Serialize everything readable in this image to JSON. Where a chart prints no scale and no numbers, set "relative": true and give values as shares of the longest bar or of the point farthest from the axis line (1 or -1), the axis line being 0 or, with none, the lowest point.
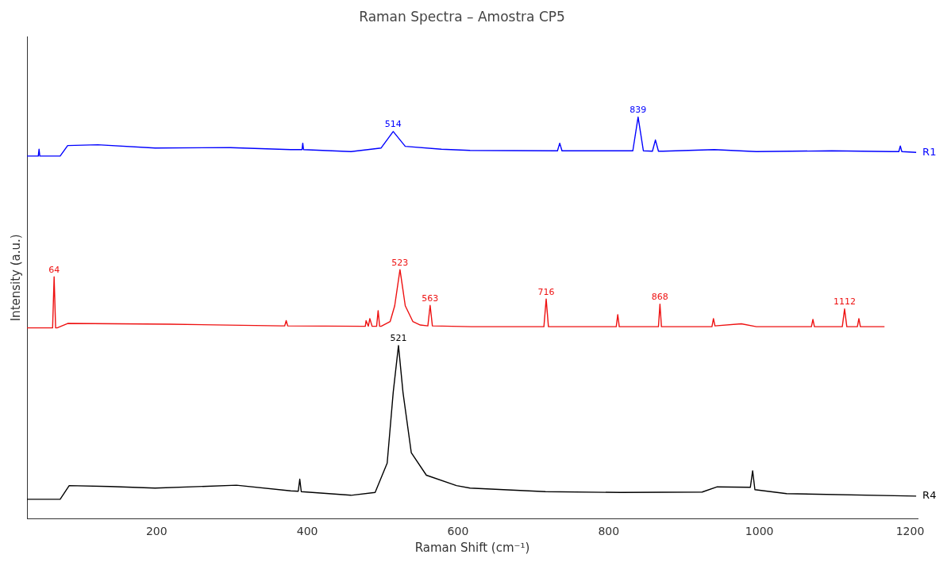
{
  "chart_data": {
    "type": "line",
    "title": "Raman Spectra – Amostra CP5",
    "xlabel": "Raman Shift (cm⁻¹)",
    "ylabel": "Intensity (a.u.)",
    "relative": true,
    "xlim": [
      28,
      1210
    ],
    "xticks": [
      200,
      400,
      600,
      800,
      1000,
      1200
    ],
    "grid": false,
    "legend": false,
    "marker": "none",
    "line_style": "solid",
    "series": [
      {
        "name": "R1",
        "color": "#0000ff",
        "x": [
          28,
          43,
          44,
          45,
          72,
          82,
          122,
          198,
          298,
          378,
          393,
          394,
          395,
          458,
          498,
          514,
          530,
          578,
          616,
          732,
          735,
          738,
          832,
          839,
          846,
          858,
          862,
          866,
          872,
          940,
          996,
          1096,
          1176,
          1185,
          1187,
          1189,
          1208
        ],
        "values": [
          0.903,
          0.903,
          0.92,
          0.903,
          0.903,
          0.929,
          0.931,
          0.923,
          0.924,
          0.919,
          0.919,
          0.935,
          0.919,
          0.914,
          0.923,
          0.964,
          0.927,
          0.92,
          0.917,
          0.916,
          0.935,
          0.916,
          0.916,
          1.0,
          0.916,
          0.915,
          0.943,
          0.915,
          0.915,
          0.919,
          0.914,
          0.916,
          0.914,
          0.914,
          0.928,
          0.914,
          0.912
        ]
      },
      {
        "color": "#ee1111",
        "x": [
          28,
          62,
          64,
          66,
          68,
          82,
          218,
          366,
          370,
          372,
          374,
          474,
          477,
          478,
          481,
          483,
          486,
          488,
          492,
          494,
          496,
          498,
          510,
          516,
          523,
          530,
          540,
          550,
          560,
          563,
          566,
          618,
          714,
          717,
          720,
          810,
          812,
          814,
          866,
          868,
          870,
          937,
          939,
          941,
          976,
          996,
          1069,
          1071,
          1073,
          1110,
          1113,
          1116,
          1130,
          1132,
          1134,
          1166
        ],
        "values": [
          0.475,
          0.475,
          0.602,
          0.475,
          0.475,
          0.486,
          0.484,
          0.48,
          0.48,
          0.493,
          0.48,
          0.479,
          0.479,
          0.493,
          0.479,
          0.498,
          0.479,
          0.479,
          0.479,
          0.518,
          0.479,
          0.479,
          0.491,
          0.53,
          0.62,
          0.53,
          0.491,
          0.482,
          0.48,
          0.531,
          0.48,
          0.478,
          0.478,
          0.547,
          0.478,
          0.478,
          0.508,
          0.478,
          0.478,
          0.534,
          0.478,
          0.478,
          0.498,
          0.48,
          0.485,
          0.478,
          0.478,
          0.496,
          0.478,
          0.478,
          0.522,
          0.478,
          0.478,
          0.498,
          0.478,
          0.478
        ]
      },
      {
        "name": "R4",
        "color": "#000000",
        "x": [
          28,
          72,
          84,
          138,
          198,
          306,
          378,
          388,
          390,
          392,
          458,
          490,
          506,
          514,
          521,
          527,
          538,
          558,
          598,
          616,
          716,
          816,
          924,
          944,
          988,
          991,
          994,
          1036,
          1208
        ],
        "values": [
          0.048,
          0.048,
          0.082,
          0.08,
          0.076,
          0.083,
          0.069,
          0.068,
          0.098,
          0.067,
          0.058,
          0.065,
          0.138,
          0.314,
          0.431,
          0.314,
          0.164,
          0.108,
          0.082,
          0.076,
          0.067,
          0.065,
          0.066,
          0.079,
          0.078,
          0.119,
          0.072,
          0.062,
          0.056
        ]
      }
    ],
    "annotations": [
      {
        "text": "514",
        "x": 514,
        "y": 0.964
      },
      {
        "text": "839",
        "x": 839,
        "y": 1.0
      },
      {
        "text": "64",
        "x": 64,
        "y": 0.602
      },
      {
        "text": "523",
        "x": 523,
        "y": 0.62
      },
      {
        "text": "563",
        "x": 563,
        "y": 0.531
      },
      {
        "text": "716",
        "x": 717,
        "y": 0.547
      },
      {
        "text": "868",
        "x": 868,
        "y": 0.534
      },
      {
        "text": "1112",
        "x": 1113,
        "y": 0.522
      },
      {
        "text": "521",
        "x": 521,
        "y": 0.431
      }
    ]
  }
}
